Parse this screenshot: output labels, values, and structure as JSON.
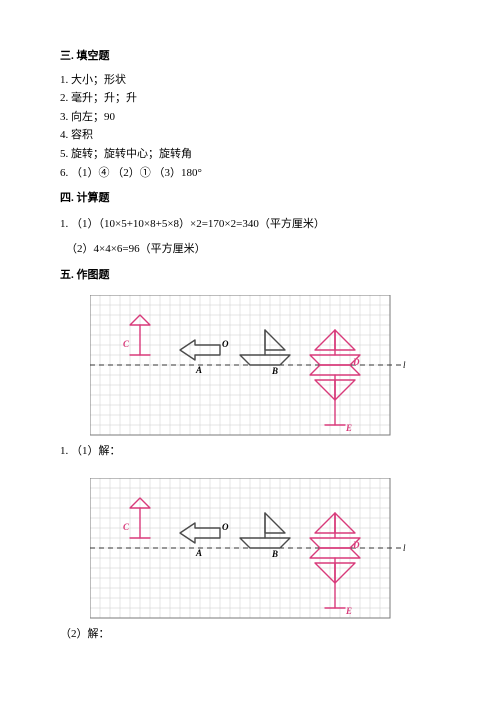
{
  "sections": {
    "s3": {
      "title": "三. 填空题",
      "items": [
        "1. 大小；形状",
        "2. 毫升；升；升",
        "3. 向左；90",
        "4. 容积",
        "5. 旋转；旋转中心；旋转角",
        "6. （1）④ （2）① （3）180°"
      ]
    },
    "s4": {
      "title": "四. 计算题",
      "line1": "1. （1）（10×5+10×8+5×8）×2=170×2=340（平方厘米）",
      "line2": "（2）4×4×6=96（平方厘米）"
    },
    "s5": {
      "title": "五. 作图题",
      "label1": "1. （1）解：",
      "label2": "（2）解："
    }
  },
  "figure": {
    "cell": 10,
    "cols": 30,
    "rows": 14,
    "grid_color": "#cccccc",
    "border_color": "#7a7a7a",
    "axis_color": "#333333",
    "pink": "#d83a7a",
    "dark": "#4a4a4a",
    "letters": {
      "C": "C",
      "A": "A",
      "O": "O",
      "B": "B",
      "D": "D",
      "E": "E",
      "l": "l"
    }
  }
}
